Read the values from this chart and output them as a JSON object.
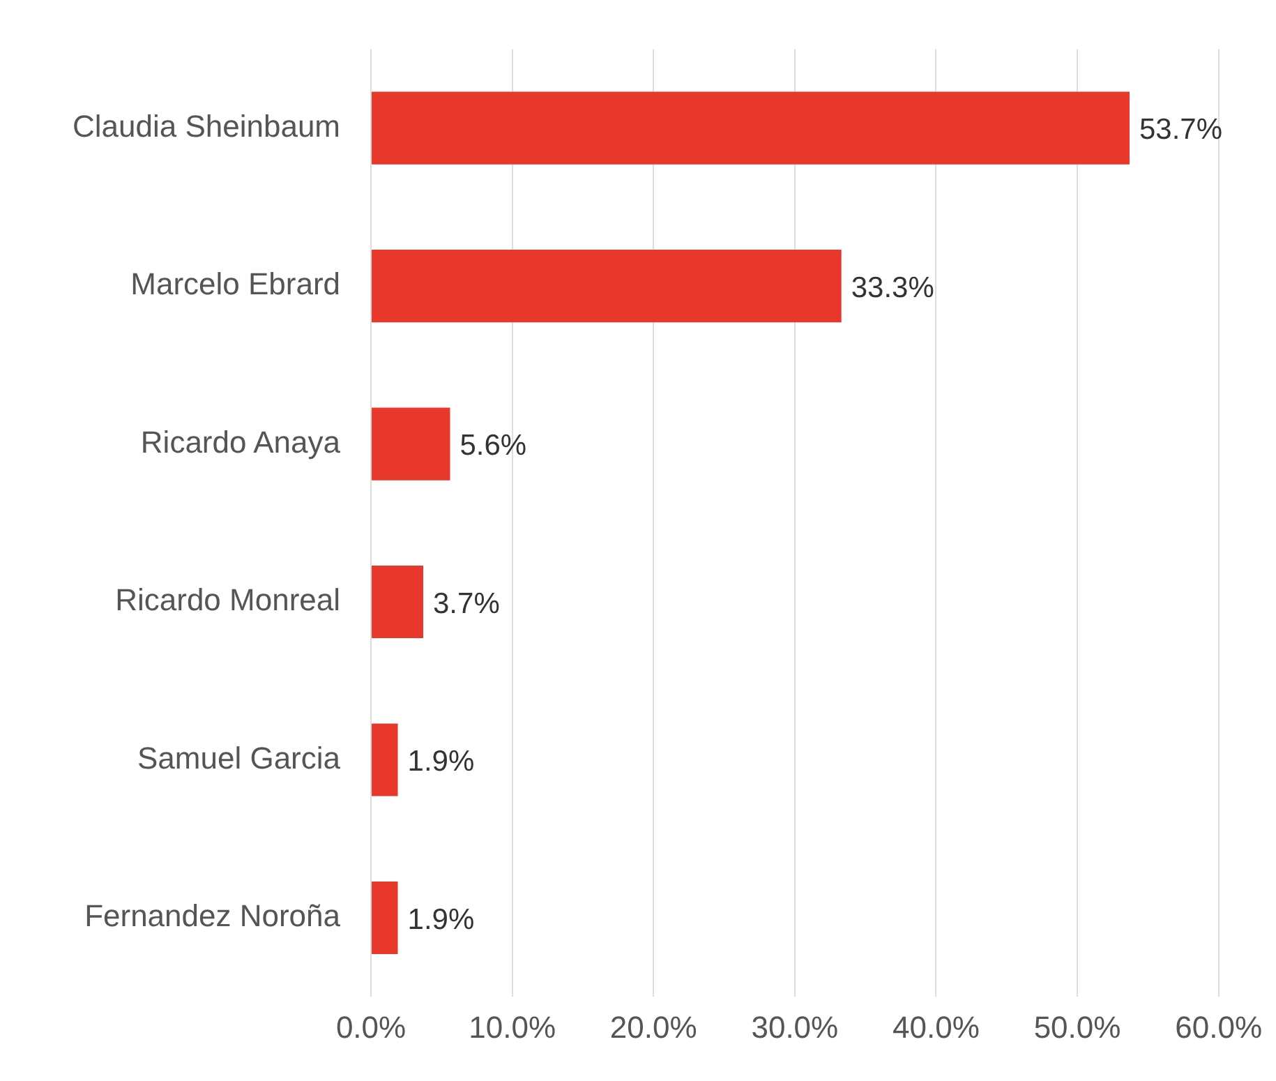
{
  "chart_data": {
    "type": "bar",
    "orientation": "horizontal",
    "categories": [
      "Claudia Sheinbaum",
      "Marcelo Ebrard",
      "Ricardo Anaya",
      "Ricardo Monreal",
      "Samuel Garcia",
      "Fernandez Noroña"
    ],
    "values": [
      53.7,
      33.3,
      5.6,
      3.7,
      1.9,
      1.9
    ],
    "value_labels": [
      "53.7%",
      "33.3%",
      "5.6%",
      "3.7%",
      "1.9%",
      "1.9%"
    ],
    "color": "#e8382c",
    "xlim": [
      0,
      60
    ],
    "xticks": [
      {
        "value": 0,
        "label": "0.0%"
      },
      {
        "value": 10,
        "label": "10.0%"
      },
      {
        "value": 20,
        "label": "20.0%"
      },
      {
        "value": 30,
        "label": "30.0%"
      },
      {
        "value": 40,
        "label": "40.0%"
      },
      {
        "value": 50,
        "label": "50.0%"
      },
      {
        "value": 60,
        "label": "60.0%"
      }
    ],
    "grid": "x",
    "legend": false
  }
}
